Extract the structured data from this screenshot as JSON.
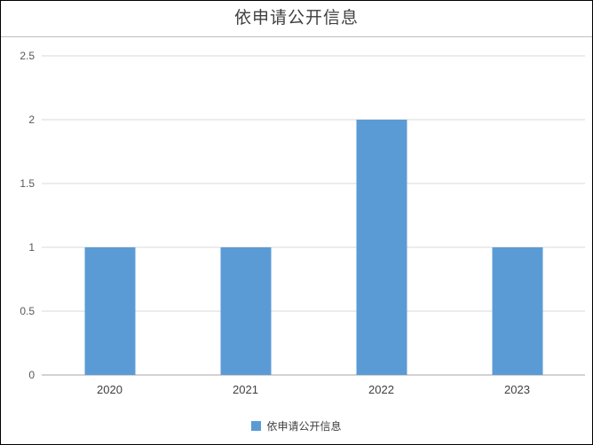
{
  "chart_data": {
    "type": "bar",
    "title": "依申请公开信息",
    "categories": [
      "2020",
      "2021",
      "2022",
      "2023"
    ],
    "values": [
      1,
      1,
      2,
      1
    ],
    "series_name": "依申请公开信息",
    "xlabel": "",
    "ylabel": "",
    "ylim": [
      0,
      2.5
    ],
    "yticks": [
      0,
      0.5,
      1,
      1.5,
      2,
      2.5
    ],
    "grid": "horizontal",
    "legend_position": "bottom",
    "bar_color": "#5b9bd5",
    "gridline_color": "#d9d9d9",
    "axis_line_color": "#a6a6a6",
    "title_color": "#404040",
    "tick_label_color": "#595959"
  }
}
